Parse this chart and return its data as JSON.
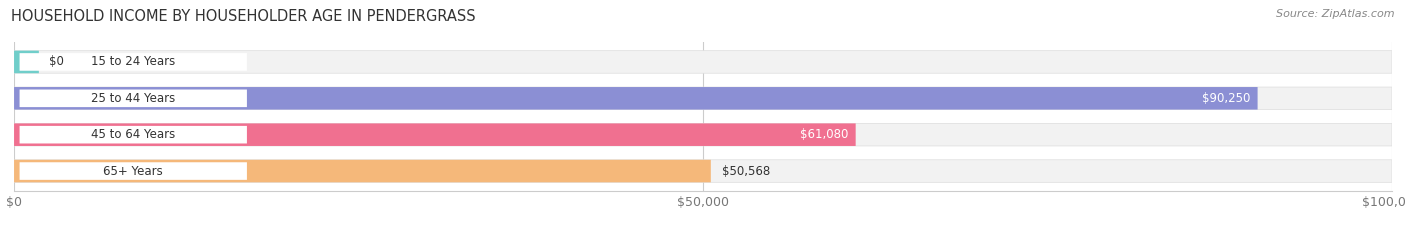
{
  "title": "HOUSEHOLD INCOME BY HOUSEHOLDER AGE IN PENDERGRASS",
  "source": "Source: ZipAtlas.com",
  "categories": [
    "15 to 24 Years",
    "25 to 44 Years",
    "45 to 64 Years",
    "65+ Years"
  ],
  "values": [
    0,
    90250,
    61080,
    50568
  ],
  "labels": [
    "$0",
    "$90,250",
    "$61,080",
    "$50,568"
  ],
  "bar_colors": [
    "#70CECA",
    "#8B8FD4",
    "#F07090",
    "#F5B87A"
  ],
  "xmax": 100000,
  "xticks": [
    0,
    50000,
    100000
  ],
  "xticklabels": [
    "$0",
    "$50,000",
    "$100,000"
  ],
  "figsize": [
    14.06,
    2.33
  ],
  "dpi": 100,
  "label_inside": [
    false,
    true,
    true,
    false
  ],
  "label_colors_inside": [
    "#333333",
    "#ffffff",
    "#ffffff",
    "#333333"
  ]
}
